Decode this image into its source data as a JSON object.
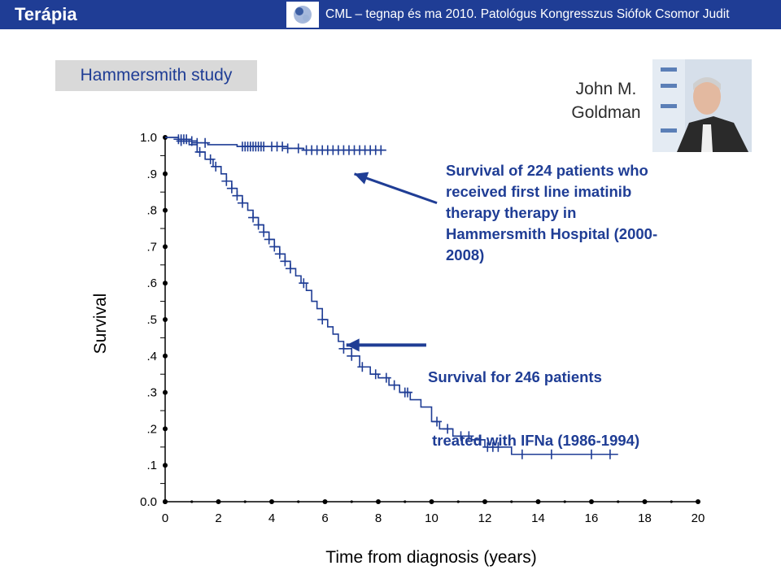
{
  "header": {
    "title": "Terápia",
    "info": "CML – tegnap és ma  2010. Patológus Kongresszus  Siófok  Csomor Judit",
    "accent": "#1f3d95"
  },
  "study_label": "Hammersmith study",
  "person": {
    "name_line1": "John M.",
    "name_line2": "Goldman"
  },
  "annotations": {
    "imatinib": [
      "Survival of 224 patients who",
      "received first line imatinib",
      "therapy therapy in",
      "Hammersmith Hospital (2000-",
      "2008)"
    ],
    "ifna": [
      "Survival for 246 patients",
      " treated with IFNa (1986-1994)"
    ]
  },
  "chart_data": {
    "type": "line",
    "title": "",
    "xlabel": "Time from diagnosis (years)",
    "ylabel": "Survival",
    "xlim": [
      0,
      20
    ],
    "ylim": [
      0,
      1.0
    ],
    "x_ticks": [
      "0",
      "2",
      "4",
      "6",
      "8",
      "10",
      "12",
      "14",
      "16",
      "18",
      "20"
    ],
    "y_ticks": [
      "0.0",
      ".1",
      ".2",
      ".3",
      ".4",
      ".5",
      ".6",
      ".7",
      ".8",
      ".9",
      "1.0"
    ],
    "series": [
      {
        "color": "#1f3d95",
        "step_points": [
          [
            0,
            1.0
          ],
          [
            0.5,
            0.99
          ],
          [
            0.9,
            0.98
          ],
          [
            1.2,
            0.96
          ],
          [
            1.5,
            0.94
          ],
          [
            1.8,
            0.92
          ],
          [
            2.1,
            0.9
          ],
          [
            2.3,
            0.88
          ],
          [
            2.5,
            0.86
          ],
          [
            2.7,
            0.84
          ],
          [
            2.9,
            0.82
          ],
          [
            3.1,
            0.8
          ],
          [
            3.3,
            0.78
          ],
          [
            3.5,
            0.76
          ],
          [
            3.7,
            0.74
          ],
          [
            3.9,
            0.72
          ],
          [
            4.1,
            0.7
          ],
          [
            4.3,
            0.68
          ],
          [
            4.5,
            0.66
          ],
          [
            4.7,
            0.64
          ],
          [
            4.9,
            0.62
          ],
          [
            5.1,
            0.6
          ],
          [
            5.3,
            0.58
          ],
          [
            5.5,
            0.55
          ],
          [
            5.7,
            0.53
          ],
          [
            5.9,
            0.5
          ],
          [
            6.1,
            0.48
          ],
          [
            6.3,
            0.46
          ],
          [
            6.5,
            0.44
          ],
          [
            6.7,
            0.42
          ],
          [
            7.0,
            0.4
          ],
          [
            7.3,
            0.37
          ],
          [
            7.7,
            0.35
          ],
          [
            8.0,
            0.34
          ],
          [
            8.4,
            0.32
          ],
          [
            8.8,
            0.3
          ],
          [
            9.2,
            0.28
          ],
          [
            9.6,
            0.26
          ],
          [
            10.0,
            0.22
          ],
          [
            10.3,
            0.2
          ],
          [
            10.8,
            0.18
          ],
          [
            11.5,
            0.17
          ],
          [
            12.0,
            0.15
          ],
          [
            13.0,
            0.13
          ],
          [
            17.0,
            0.13
          ]
        ],
        "censor_x": [
          0.6,
          1.3,
          1.7,
          1.9,
          2.3,
          2.5,
          2.7,
          2.9,
          3.3,
          3.5,
          3.7,
          3.9,
          4.1,
          4.3,
          4.5,
          4.7,
          5.2,
          5.9,
          6.7,
          7.0,
          7.4,
          7.9,
          8.3,
          8.6,
          9.0,
          9.1,
          10.2,
          10.6,
          11.1,
          11.4,
          11.8,
          12.1,
          12.3,
          12.5,
          13.4,
          14.5,
          16.0,
          16.7
        ]
      },
      {
        "color": "#1f3d95",
        "step_points": [
          [
            0,
            1.0
          ],
          [
            0.5,
            0.995
          ],
          [
            0.9,
            0.99
          ],
          [
            1.2,
            0.985
          ],
          [
            1.6,
            0.98
          ],
          [
            2.5,
            0.98
          ],
          [
            2.7,
            0.975
          ],
          [
            4.2,
            0.975
          ],
          [
            4.6,
            0.97
          ],
          [
            5.0,
            0.97
          ],
          [
            5.2,
            0.965
          ],
          [
            8.3,
            0.965
          ]
        ],
        "censor_x": [
          0.5,
          0.6,
          0.7,
          0.8,
          1.0,
          1.2,
          1.5,
          2.9,
          3.0,
          3.1,
          3.2,
          3.3,
          3.4,
          3.5,
          3.6,
          3.7,
          4.0,
          4.2,
          4.4,
          4.6,
          5.0,
          5.3,
          5.5,
          5.7,
          5.9,
          6.1,
          6.3,
          6.5,
          6.7,
          6.9,
          7.1,
          7.3,
          7.5,
          7.7,
          7.9,
          8.1
        ]
      }
    ],
    "arrows": [
      {
        "from": [
          10.2,
          0.82
        ],
        "to": [
          7.1,
          0.9
        ]
      },
      {
        "from": [
          9.8,
          0.43
        ],
        "to": [
          6.8,
          0.43
        ]
      }
    ]
  }
}
